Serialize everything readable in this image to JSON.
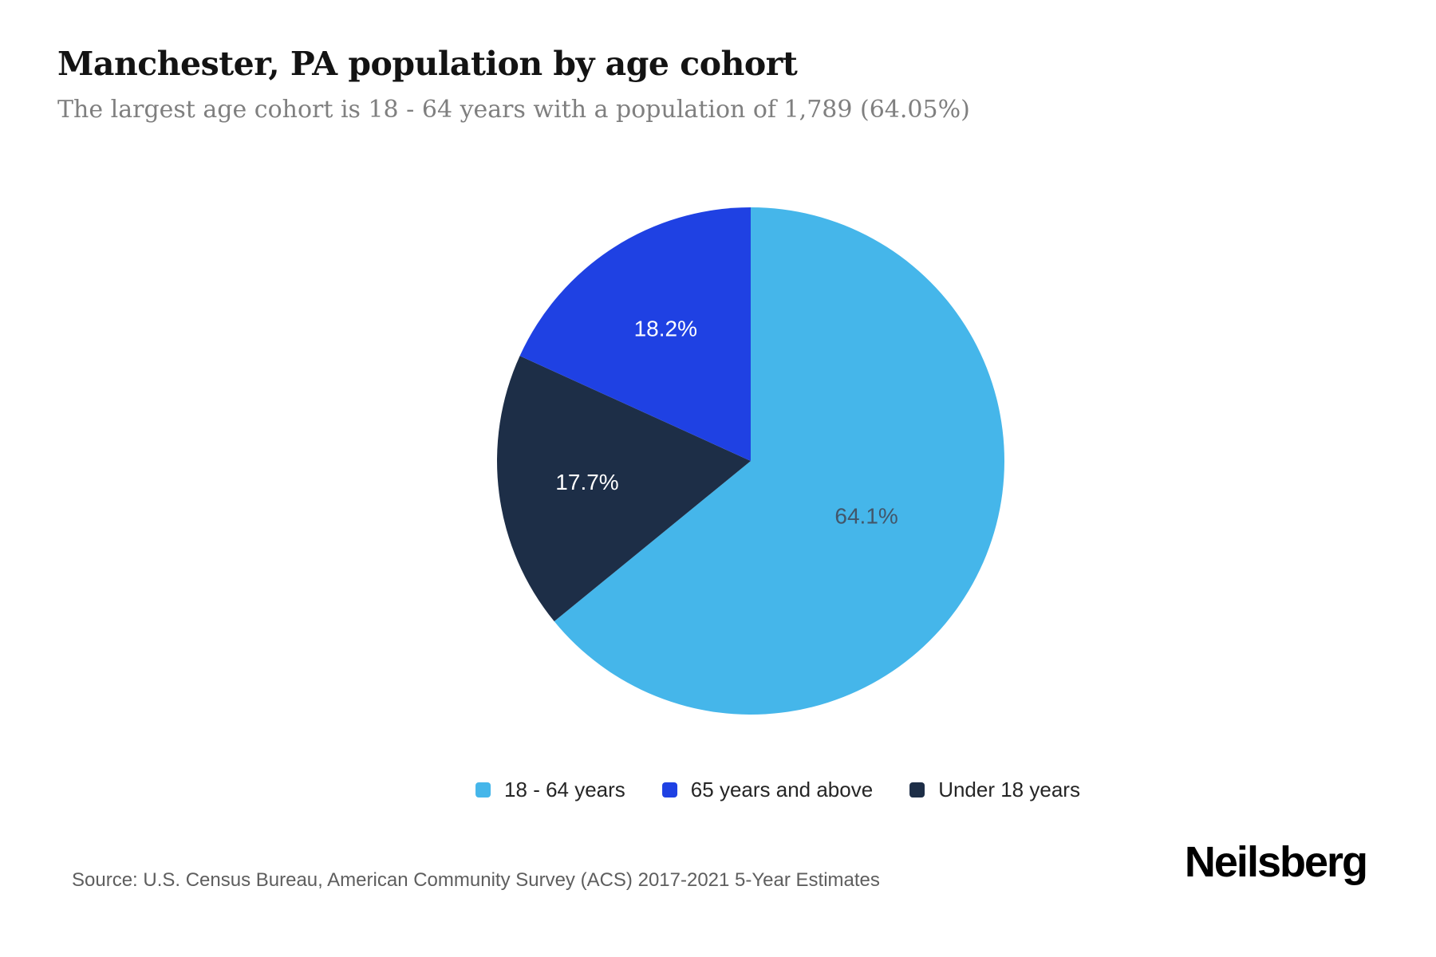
{
  "page": {
    "background": "#ffffff"
  },
  "header": {
    "title": "Manchester, PA population by age cohort",
    "subtitle": "The largest age cohort is 18 - 64 years with a population of 1,789 (64.05%)"
  },
  "chart_data": {
    "type": "pie",
    "title": "Manchester, PA population by age cohort",
    "unit": "percent",
    "start_angle_deg": 0,
    "direction": "clockwise",
    "slices": [
      {
        "label": "18 - 64 years",
        "value": 64.1,
        "display": "64.1%",
        "color": "#45b6ea",
        "label_color": "#42566a"
      },
      {
        "label": "Under 18 years",
        "value": 17.7,
        "display": "17.7%",
        "color": "#1d2e47",
        "label_color": "#ffffff"
      },
      {
        "label": "65 years and above",
        "value": 18.2,
        "display": "18.2%",
        "color": "#1f41e3",
        "label_color": "#ffffff"
      }
    ],
    "largest_cohort": {
      "label": "18 - 64 years",
      "population": "1,789",
      "share": "64.05%"
    },
    "legend_position": "bottom"
  },
  "legend": {
    "items": [
      {
        "label": "18 - 64 years",
        "color": "#45b6ea"
      },
      {
        "label": "65 years and above",
        "color": "#1f41e3"
      },
      {
        "label": "Under 18 years",
        "color": "#1d2e47"
      }
    ]
  },
  "footer": {
    "source": "Source: U.S. Census Bureau, American Community Survey (ACS) 2017-2021 5-Year Estimates",
    "brand": "Neilsberg"
  }
}
